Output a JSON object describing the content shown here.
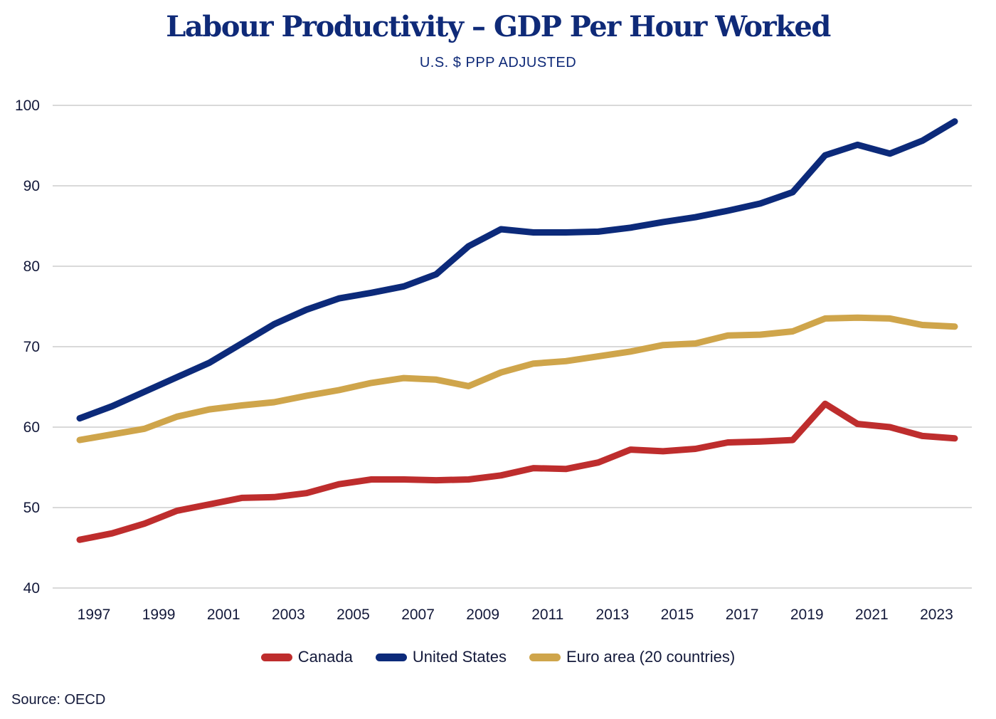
{
  "chart_data": {
    "type": "line",
    "title": "Labour Productivity – GDP Per Hour Worked",
    "subtitle": "U.S. $ PPP ADJUSTED",
    "xlabel": "",
    "ylabel": "",
    "x": [
      1997,
      1998,
      1999,
      2000,
      2001,
      2002,
      2003,
      2004,
      2005,
      2006,
      2007,
      2008,
      2009,
      2010,
      2011,
      2012,
      2013,
      2014,
      2015,
      2016,
      2017,
      2018,
      2019,
      2020,
      2021,
      2022,
      2023,
      2024
    ],
    "x_tick_labels": [
      "1997",
      "1999",
      "2001",
      "2003",
      "2005",
      "2007",
      "2009",
      "2011",
      "2013",
      "2015",
      "2017",
      "2019",
      "2021",
      "2023"
    ],
    "y_tick_labels": [
      "40",
      "50",
      "60",
      "70",
      "80",
      "90",
      "100"
    ],
    "y_ticks": [
      40,
      50,
      60,
      70,
      80,
      90,
      100
    ],
    "ylim": [
      40,
      100
    ],
    "grid": true,
    "legend_position": "bottom-center",
    "series": [
      {
        "name": "Canada",
        "color": "#be2d2d",
        "values": [
          46.0,
          46.8,
          48.0,
          49.6,
          50.4,
          51.2,
          51.3,
          51.8,
          52.9,
          53.5,
          53.5,
          53.4,
          53.5,
          54.0,
          54.9,
          54.8,
          55.6,
          57.2,
          57.0,
          57.3,
          58.1,
          58.2,
          58.4,
          62.9,
          60.4,
          60.0,
          58.9,
          58.6
        ]
      },
      {
        "name": "United States",
        "color": "#0c2a7a",
        "values": [
          61.1,
          62.6,
          64.4,
          66.2,
          68.0,
          70.4,
          72.8,
          74.6,
          76.0,
          76.7,
          77.5,
          79.0,
          82.5,
          84.6,
          84.2,
          84.2,
          84.3,
          84.8,
          85.5,
          86.1,
          86.9,
          87.8,
          89.2,
          93.8,
          95.1,
          94.0,
          95.6,
          98.0
        ]
      },
      {
        "name": "Euro area (20 countries)",
        "color": "#cfa54b",
        "values": [
          58.4,
          59.1,
          59.8,
          61.3,
          62.2,
          62.7,
          63.1,
          63.9,
          64.6,
          65.5,
          66.1,
          65.9,
          65.1,
          66.8,
          67.9,
          68.2,
          68.8,
          69.4,
          70.2,
          70.4,
          71.4,
          71.5,
          71.9,
          73.5,
          73.6,
          73.5,
          72.7,
          72.5
        ]
      }
    ],
    "source": "Source: OECD"
  }
}
